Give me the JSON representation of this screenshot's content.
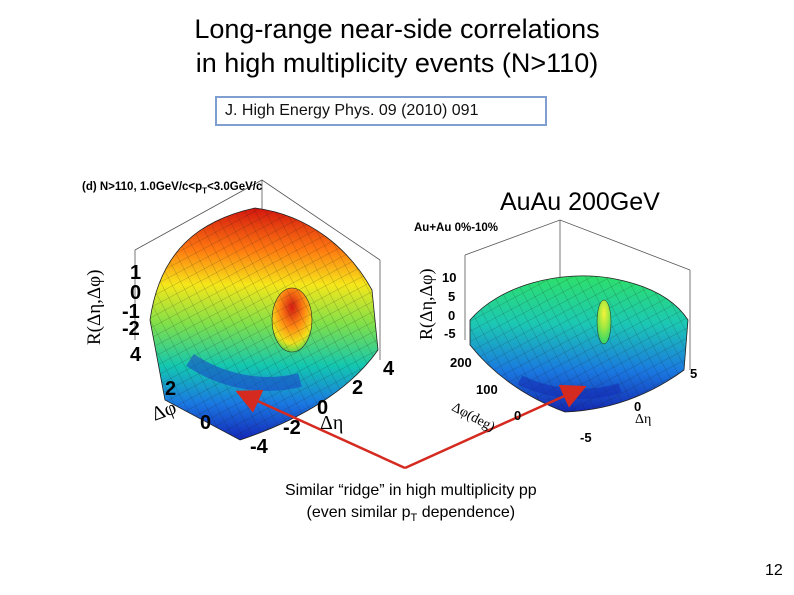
{
  "title": {
    "line1": "Long-range near-side correlations",
    "line2": "in high multiplicity events (N>110)"
  },
  "reference": "J. High Energy Phys. 09 (2010) 091",
  "left_plot": {
    "panel_label": "(d) N>110, 1.0GeV/c<p",
    "panel_label_sub": "T",
    "panel_label_tail": "<3.0GeV/c",
    "z_axis_label": "R(Δη,Δφ)",
    "z_ticks": [
      "1",
      "0",
      "-1",
      "-2"
    ],
    "phi_axis_label": "Δφ",
    "phi_ticks": [
      "4",
      "2",
      "0"
    ],
    "eta_axis_label": "Δη",
    "eta_ticks": [
      "4",
      "2",
      "0",
      "-2",
      "-4"
    ]
  },
  "right_plot": {
    "system_label": "AuAu 200GeV",
    "centrality_label": "Au+Au 0%-10%",
    "z_axis_label": "R(Δη,Δφ)",
    "z_ticks": [
      "10",
      "5",
      "0",
      "-5"
    ],
    "phi_axis_label": "Δφ(deg)",
    "phi_ticks": [
      "200",
      "100",
      "0"
    ],
    "eta_axis_label": "Δη",
    "eta_ticks": [
      "5",
      "0",
      "-5"
    ]
  },
  "caption": {
    "line1": "Similar “ridge” in high multiplicity pp",
    "line2_pre": "(even similar p",
    "line2_sub": "T",
    "line2_post": " dependence)"
  },
  "colors": {
    "arrow": "#d42a1f",
    "ref_border": "#7f9fd0"
  },
  "page_number": "12"
}
